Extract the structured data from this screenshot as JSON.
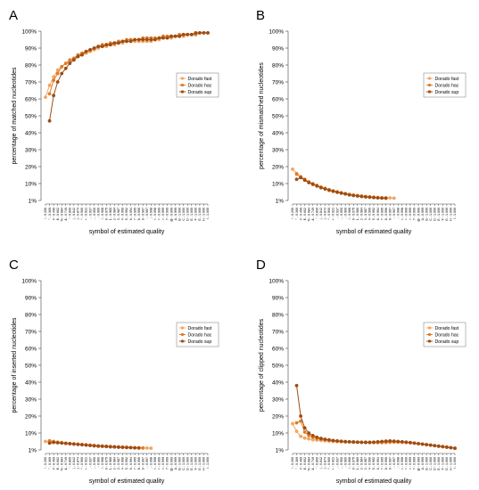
{
  "figure": {
    "xlabel": "symbol of estimated quality",
    "y_ticks": [
      "1%",
      "10%",
      "20%",
      "30%",
      "40%",
      "50%",
      "60%",
      "70%",
      "80%",
      "90%",
      "100%"
    ],
    "x_ticks": [
      "! - 0.206",
      "\" - 0.369",
      "# - 0.499",
      "$ - 0.602",
      "% - 0.684",
      "& - 0.749",
      "' - 0.800",
      "( - 0.842",
      ") - 0.874",
      "* - 0.900",
      "+ - 0.921",
      ", - 0.937",
      "- - 0.950",
      ". - 0.960",
      "/ - 0.968",
      "0 - 0.975",
      "1 - 0.980",
      "2 - 0.984",
      "3 - 0.987",
      "4 - 0.990",
      "5 - 0.992",
      "6 - 0.994",
      "7 - 0.995",
      "8 - 0.996",
      "9 - 0.997",
      ": - 0.997",
      "; - 0.998",
      "< - 0.998",
      "= - 0.999",
      "> - 0.999",
      "? - 0.999",
      "@ - 0.999",
      "A - 0.999",
      "B - 1.000",
      "C - 1.000",
      "D - 1.000",
      "E - 1.000",
      "F - 1.000",
      "G - 1.000",
      "H - 1.000",
      "I - 1.000"
    ],
    "legend": [
      "Dorado fast",
      "Dorado hac",
      "Dorado sup"
    ],
    "series_colors": [
      "#f4a460",
      "#e07b28",
      "#9c4d14"
    ]
  },
  "chart_data": [
    {
      "type": "line",
      "panel": "A",
      "ylabel": "percentage of matched nucleotides",
      "ylim": [
        0,
        100
      ],
      "legend_position": "right",
      "series": [
        {
          "name": "Dorado fast",
          "x": [
            1,
            2,
            3,
            4,
            5,
            6,
            7,
            8,
            9,
            10,
            11,
            12,
            13,
            14,
            15,
            16,
            17,
            18,
            19,
            20,
            21,
            22,
            23,
            24,
            25,
            26,
            27,
            28,
            29,
            30,
            31,
            32,
            33,
            34,
            35,
            36,
            37,
            38,
            39,
            40,
            41
          ],
          "values": [
            61,
            68,
            73,
            77,
            79,
            81,
            82,
            84,
            85,
            86,
            87,
            88,
            89,
            90,
            91,
            91,
            92,
            92,
            93,
            93,
            94,
            94,
            94,
            94,
            94,
            94,
            94,
            95,
            95,
            96,
            96,
            96,
            97,
            97,
            97,
            98,
            98,
            98,
            99,
            99,
            99
          ]
        },
        {
          "name": "Dorado hac",
          "x": [
            2,
            3,
            4,
            5,
            6,
            7,
            8,
            9,
            10,
            11,
            12,
            13,
            14,
            15,
            16,
            17,
            18,
            19,
            20,
            21,
            22,
            23,
            24,
            25,
            26,
            27,
            28,
            29,
            30,
            31,
            32,
            33,
            34,
            35,
            36,
            37,
            38,
            39,
            40,
            41
          ],
          "values": [
            63,
            71,
            75,
            79,
            81,
            83,
            84,
            86,
            87,
            88,
            89,
            90,
            91,
            92,
            92,
            93,
            93,
            94,
            94,
            95,
            95,
            95,
            95,
            96,
            96,
            96,
            96,
            96,
            97,
            97,
            97,
            97,
            98,
            98,
            98,
            98,
            98,
            99,
            99,
            99
          ]
        },
        {
          "name": "Dorado sup",
          "x": [
            2,
            3,
            4,
            5,
            6,
            7,
            8,
            9,
            10,
            11,
            12,
            13,
            14,
            15,
            16,
            17,
            18,
            19,
            20,
            21,
            22,
            23,
            24,
            25,
            26,
            27,
            28,
            29,
            30,
            31,
            32,
            33,
            34,
            35,
            36,
            37,
            38,
            39,
            40,
            41
          ],
          "values": [
            47,
            62,
            70,
            75,
            78,
            81,
            83,
            85,
            86,
            88,
            89,
            90,
            91,
            91,
            92,
            92,
            93,
            93,
            94,
            94,
            94,
            95,
            95,
            95,
            95,
            95,
            95,
            96,
            96,
            96,
            97,
            97,
            97,
            98,
            98,
            98,
            99,
            99,
            99,
            99
          ]
        }
      ]
    },
    {
      "type": "line",
      "panel": "B",
      "ylabel": "percentage of mismatched nucleotides",
      "ylim": [
        0,
        100
      ],
      "legend_position": "right",
      "series": [
        {
          "name": "Dorado fast",
          "x": [
            1,
            2,
            3,
            4,
            5,
            6,
            7,
            8,
            9,
            10,
            11,
            12,
            13,
            14,
            15,
            16,
            17,
            18,
            19,
            20,
            21,
            22,
            23,
            24,
            25,
            26
          ],
          "values": [
            18.5,
            16.0,
            14.0,
            12.5,
            11.0,
            10.0,
            9.0,
            8.0,
            7.2,
            6.5,
            5.8,
            5.2,
            4.6,
            4.1,
            3.7,
            3.3,
            3.0,
            2.7,
            2.4,
            2.2,
            2.0,
            1.8,
            1.7,
            1.6,
            1.5,
            1.4
          ]
        },
        {
          "name": "Dorado hac",
          "x": [
            2,
            3,
            4,
            5,
            6,
            7,
            8,
            9,
            10,
            11,
            12,
            13,
            14,
            15,
            16,
            17,
            18,
            19,
            20,
            21,
            22,
            23,
            24
          ],
          "values": [
            15.5,
            14.0,
            12.5,
            11.0,
            9.8,
            8.8,
            7.8,
            7.0,
            6.3,
            5.6,
            5.0,
            4.5,
            4.0,
            3.5,
            3.1,
            2.8,
            2.5,
            2.2,
            2.0,
            1.8,
            1.6,
            1.5,
            1.4
          ]
        },
        {
          "name": "Dorado sup",
          "x": [
            2,
            3,
            4,
            5,
            6,
            7,
            8,
            9,
            10,
            11,
            12,
            13,
            14,
            15,
            16,
            17,
            18,
            19,
            20,
            21,
            22,
            23,
            24
          ],
          "values": [
            12.5,
            13.5,
            12.0,
            10.5,
            9.5,
            8.5,
            7.5,
            6.8,
            6.0,
            5.4,
            4.8,
            4.3,
            3.8,
            3.3,
            2.9,
            2.6,
            2.3,
            2.1,
            1.9,
            1.7,
            1.5,
            1.4,
            1.3
          ]
        }
      ]
    },
    {
      "type": "line",
      "panel": "C",
      "ylabel": "percentage of inserted nucleotides",
      "ylim": [
        0,
        100
      ],
      "legend_position": "right",
      "series": [
        {
          "name": "Dorado fast",
          "x": [
            1,
            2,
            3,
            4,
            5,
            6,
            7,
            8,
            9,
            10,
            11,
            12,
            13,
            14,
            15,
            16,
            17,
            18,
            19,
            20,
            21,
            22,
            23,
            24,
            25,
            26,
            27
          ],
          "values": [
            5.0,
            4.8,
            4.6,
            4.4,
            4.2,
            4.0,
            3.8,
            3.6,
            3.4,
            3.2,
            3.0,
            2.8,
            2.6,
            2.4,
            2.3,
            2.2,
            2.0,
            1.9,
            1.8,
            1.7,
            1.6,
            1.5,
            1.4,
            1.3,
            1.2,
            1.1,
            1.0
          ]
        },
        {
          "name": "Dorado hac",
          "x": [
            2,
            3,
            4,
            5,
            6,
            7,
            8,
            9,
            10,
            11,
            12,
            13,
            14,
            15,
            16,
            17,
            18,
            19,
            20,
            21,
            22,
            23,
            24,
            25
          ],
          "values": [
            5.4,
            5.0,
            4.6,
            4.3,
            4.0,
            3.8,
            3.6,
            3.4,
            3.2,
            3.0,
            2.8,
            2.6,
            2.4,
            2.3,
            2.1,
            2.0,
            1.9,
            1.7,
            1.6,
            1.5,
            1.4,
            1.3,
            1.2,
            1.1
          ]
        },
        {
          "name": "Dorado sup",
          "x": [
            2,
            3,
            4,
            5,
            6,
            7,
            8,
            9,
            10,
            11,
            12,
            13,
            14,
            15,
            16,
            17,
            18,
            19,
            20,
            21,
            22,
            23,
            24
          ],
          "values": [
            4.0,
            4.4,
            4.2,
            4.0,
            3.8,
            3.6,
            3.4,
            3.2,
            3.0,
            2.8,
            2.6,
            2.4,
            2.2,
            2.1,
            2.0,
            1.8,
            1.7,
            1.6,
            1.5,
            1.4,
            1.3,
            1.2,
            1.1
          ]
        }
      ]
    },
    {
      "type": "line",
      "panel": "D",
      "ylabel": "percentage of clipped nucleotides",
      "ylim": [
        0,
        100
      ],
      "legend_position": "right",
      "series": [
        {
          "name": "Dorado fast",
          "x": [
            1,
            2,
            3,
            4,
            5,
            6,
            7,
            8,
            9,
            10,
            11,
            12,
            13,
            14,
            15,
            16,
            17,
            18,
            19,
            20,
            21,
            22,
            23,
            24,
            25,
            26,
            27,
            28,
            29,
            30,
            31,
            32,
            33,
            34,
            35,
            36,
            37,
            38,
            39,
            40,
            41
          ],
          "values": [
            15.5,
            11.0,
            8.0,
            7.0,
            6.5,
            6.0,
            5.8,
            5.6,
            5.4,
            5.2,
            5.0,
            4.9,
            4.8,
            4.7,
            4.6,
            4.5,
            4.4,
            4.4,
            4.3,
            4.3,
            4.2,
            4.2,
            4.2,
            4.3,
            4.4,
            4.5,
            4.5,
            4.4,
            4.3,
            4.2,
            4.0,
            3.8,
            3.5,
            3.2,
            2.9,
            2.6,
            2.3,
            2.0,
            1.7,
            1.4,
            1.0
          ]
        },
        {
          "name": "Dorado hac",
          "x": [
            2,
            3,
            4,
            5,
            6,
            7,
            8,
            9,
            10,
            11,
            12,
            13,
            14,
            15,
            16,
            17,
            18,
            19,
            20,
            21,
            22,
            23,
            24,
            25,
            26,
            27,
            28,
            29,
            30,
            31,
            32,
            33,
            34,
            35,
            36,
            37,
            38,
            39,
            40,
            41
          ],
          "values": [
            16.0,
            17.0,
            10.5,
            8.5,
            7.5,
            6.8,
            6.3,
            6.0,
            5.7,
            5.4,
            5.2,
            5.0,
            4.9,
            4.8,
            4.7,
            4.6,
            4.5,
            4.5,
            4.4,
            4.4,
            4.5,
            4.6,
            4.7,
            4.8,
            4.9,
            4.8,
            4.7,
            4.5,
            4.3,
            4.0,
            3.7,
            3.4,
            3.1,
            2.8,
            2.5,
            2.2,
            1.9,
            1.6,
            1.3,
            1.0
          ]
        },
        {
          "name": "Dorado sup",
          "x": [
            2,
            3,
            4,
            5,
            6,
            7,
            8,
            9,
            10,
            11,
            12,
            13,
            14,
            15,
            16,
            17,
            18,
            19,
            20,
            21,
            22,
            23,
            24,
            25,
            26,
            27,
            28,
            29,
            30,
            31,
            32,
            33,
            34,
            35,
            36,
            37,
            38,
            39,
            40,
            41
          ],
          "values": [
            38.0,
            20.0,
            13.0,
            10.0,
            8.5,
            7.5,
            6.8,
            6.3,
            6.0,
            5.6,
            5.3,
            5.1,
            4.9,
            4.8,
            4.7,
            4.6,
            4.5,
            4.5,
            4.5,
            4.6,
            4.8,
            5.0,
            5.2,
            5.3,
            5.2,
            5.0,
            4.8,
            4.6,
            4.3,
            4.0,
            3.7,
            3.4,
            3.1,
            2.8,
            2.5,
            2.2,
            1.9,
            1.6,
            1.3,
            1.0
          ]
        }
      ]
    }
  ]
}
